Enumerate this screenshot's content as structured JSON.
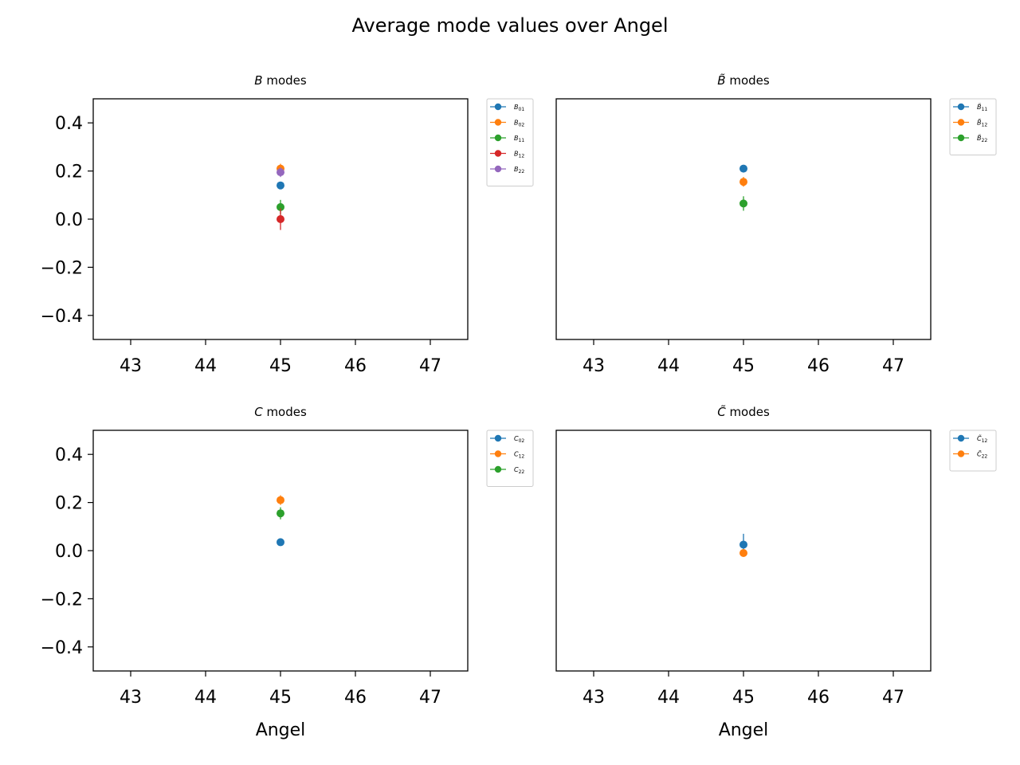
{
  "figure": {
    "title": "Average mode values over Angel"
  },
  "chart_data": [
    {
      "type": "scatter",
      "title": "B modes",
      "title_symbol": "B",
      "title_tilde": false,
      "xlabel": "",
      "ylabel": "",
      "xlim": [
        42.5,
        47.5
      ],
      "ylim": [
        -0.5,
        0.5
      ],
      "xticks": [
        43,
        44,
        45,
        46,
        47
      ],
      "yticks": [
        0.4,
        0.2,
        0.0,
        -0.2,
        -0.4
      ],
      "show_yticks": true,
      "legend_position": "outside-top-right",
      "series": [
        {
          "name": "B01",
          "sym": "B",
          "sub": "01",
          "tilde": false,
          "color": "#1f77b4",
          "x": [
            45
          ],
          "y": [
            0.14
          ],
          "err": [
            0.01
          ]
        },
        {
          "name": "B02",
          "sym": "B",
          "sub": "02",
          "tilde": false,
          "color": "#ff7f0e",
          "x": [
            45
          ],
          "y": [
            0.21
          ],
          "err": [
            0.02
          ]
        },
        {
          "name": "B11",
          "sym": "B",
          "sub": "11",
          "tilde": false,
          "color": "#2ca02c",
          "x": [
            45
          ],
          "y": [
            0.05
          ],
          "err": [
            0.03
          ]
        },
        {
          "name": "B12",
          "sym": "B",
          "sub": "12",
          "tilde": false,
          "color": "#d62728",
          "x": [
            45
          ],
          "y": [
            0.0
          ],
          "err": [
            0.045
          ]
        },
        {
          "name": "B22",
          "sym": "B",
          "sub": "22",
          "tilde": false,
          "color": "#9467bd",
          "x": [
            45
          ],
          "y": [
            0.195
          ],
          "err": [
            0.02
          ]
        }
      ]
    },
    {
      "type": "scatter",
      "title": "B̃ modes",
      "title_symbol": "B",
      "title_tilde": true,
      "xlabel": "",
      "ylabel": "",
      "xlim": [
        42.5,
        47.5
      ],
      "ylim": [
        -0.5,
        0.5
      ],
      "xticks": [
        43,
        44,
        45,
        46,
        47
      ],
      "yticks": [
        0.4,
        0.2,
        0.0,
        -0.2,
        -0.4
      ],
      "show_yticks": false,
      "legend_position": "outside-top-right",
      "series": [
        {
          "name": "B̃11",
          "sym": "B",
          "sub": "11",
          "tilde": true,
          "color": "#1f77b4",
          "x": [
            45
          ],
          "y": [
            0.21
          ],
          "err": [
            0.01
          ]
        },
        {
          "name": "B̃12",
          "sym": "B",
          "sub": "12",
          "tilde": true,
          "color": "#ff7f0e",
          "x": [
            45
          ],
          "y": [
            0.155
          ],
          "err": [
            0.02
          ]
        },
        {
          "name": "B̃22",
          "sym": "B",
          "sub": "22",
          "tilde": true,
          "color": "#2ca02c",
          "x": [
            45
          ],
          "y": [
            0.065
          ],
          "err": [
            0.03
          ]
        }
      ]
    },
    {
      "type": "scatter",
      "title": "C modes",
      "title_symbol": "C",
      "title_tilde": false,
      "xlabel": "Angel",
      "ylabel": "",
      "xlim": [
        42.5,
        47.5
      ],
      "ylim": [
        -0.5,
        0.5
      ],
      "xticks": [
        43,
        44,
        45,
        46,
        47
      ],
      "yticks": [
        0.4,
        0.2,
        0.0,
        -0.2,
        -0.4
      ],
      "show_yticks": true,
      "legend_position": "outside-top-right",
      "series": [
        {
          "name": "C02",
          "sym": "C",
          "sub": "02",
          "tilde": false,
          "color": "#1f77b4",
          "x": [
            45
          ],
          "y": [
            0.035
          ],
          "err": [
            0.01
          ]
        },
        {
          "name": "C12",
          "sym": "C",
          "sub": "12",
          "tilde": false,
          "color": "#ff7f0e",
          "x": [
            45
          ],
          "y": [
            0.21
          ],
          "err": [
            0.02
          ]
        },
        {
          "name": "C22",
          "sym": "C",
          "sub": "22",
          "tilde": false,
          "color": "#2ca02c",
          "x": [
            45
          ],
          "y": [
            0.155
          ],
          "err": [
            0.025
          ]
        }
      ]
    },
    {
      "type": "scatter",
      "title": "C̃ modes",
      "title_symbol": "C",
      "title_tilde": true,
      "xlabel": "Angel",
      "ylabel": "",
      "xlim": [
        42.5,
        47.5
      ],
      "ylim": [
        -0.5,
        0.5
      ],
      "xticks": [
        43,
        44,
        45,
        46,
        47
      ],
      "yticks": [
        0.4,
        0.2,
        0.0,
        -0.2,
        -0.4
      ],
      "show_yticks": false,
      "legend_position": "outside-top-right",
      "series": [
        {
          "name": "C̃12",
          "sym": "C",
          "sub": "12",
          "tilde": true,
          "color": "#1f77b4",
          "x": [
            45
          ],
          "y": [
            0.025
          ],
          "err": [
            0.045
          ]
        },
        {
          "name": "C̃22",
          "sym": "C",
          "sub": "22",
          "tilde": true,
          "color": "#ff7f0e",
          "x": [
            45
          ],
          "y": [
            -0.01
          ],
          "err": [
            0.01
          ]
        }
      ]
    }
  ]
}
